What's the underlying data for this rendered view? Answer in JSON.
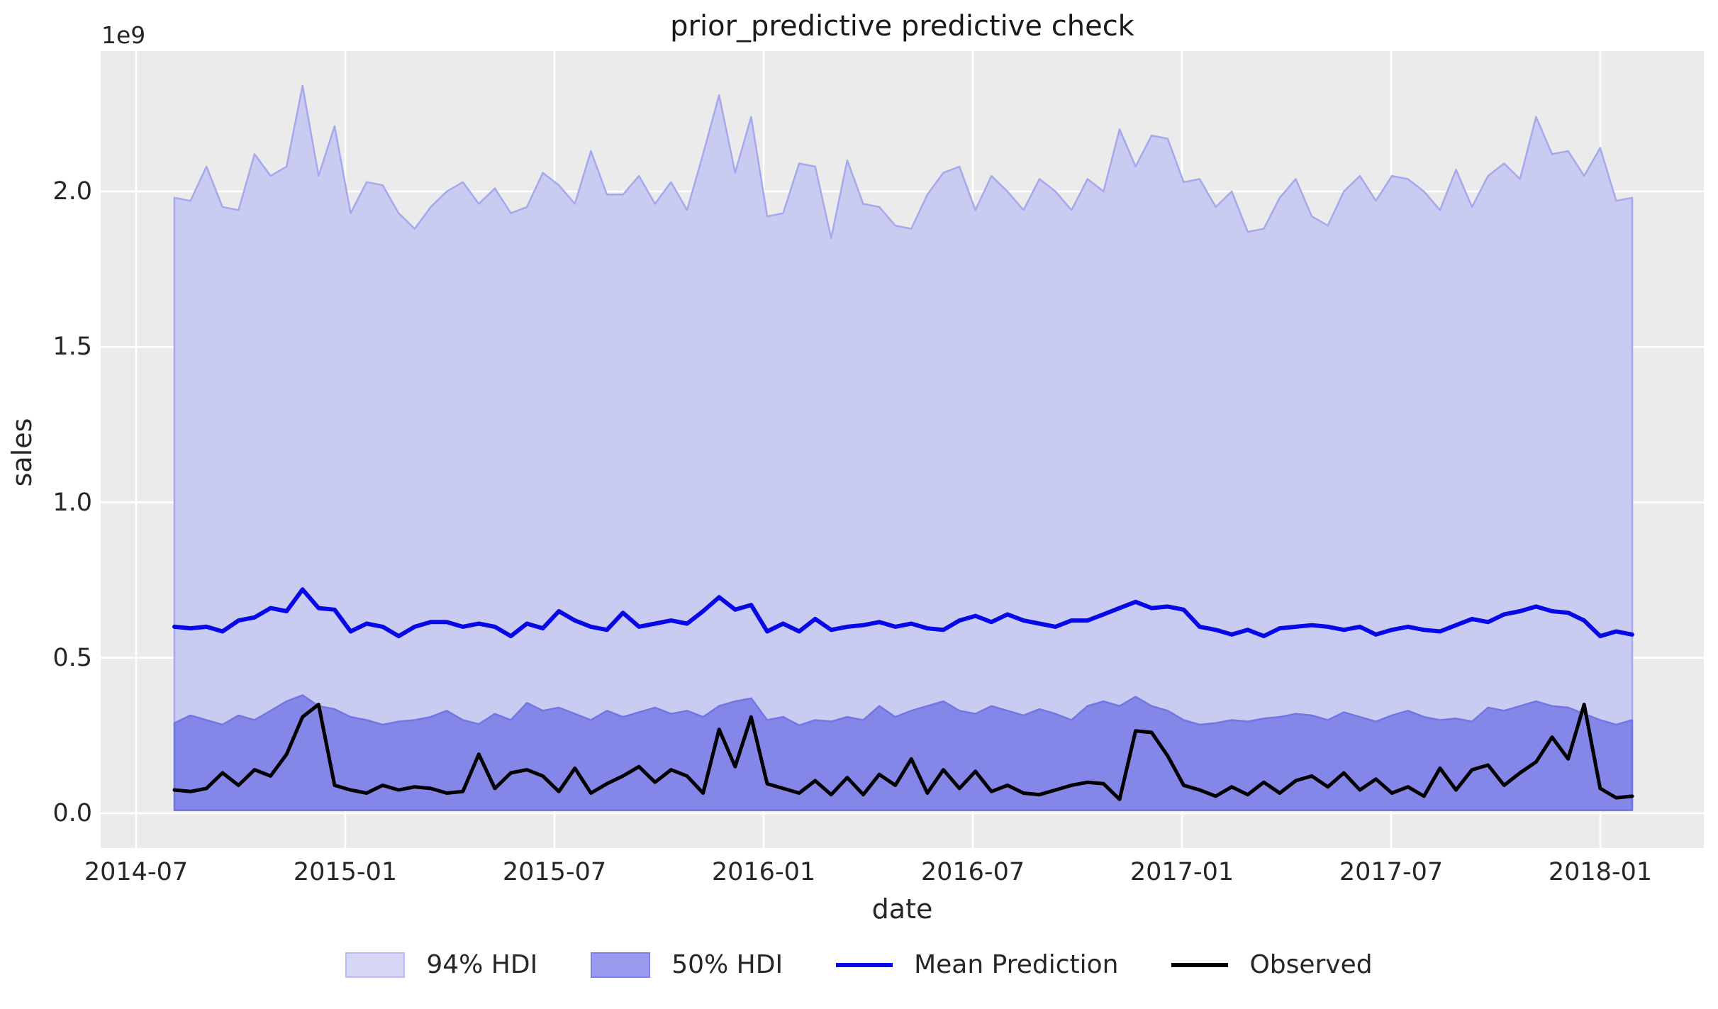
{
  "figure": {
    "title": "prior_predictive predictive check",
    "offset_label": "1e9",
    "x_axis": {
      "label": "date",
      "ticks": [
        "2014-07",
        "2015-01",
        "2015-07",
        "2016-01",
        "2016-07",
        "2017-01",
        "2017-07",
        "2018-01"
      ]
    },
    "y_axis": {
      "label": "sales",
      "ticks": [
        "0.0",
        "0.5",
        "1.0",
        "1.5",
        "2.0"
      ]
    },
    "legend": [
      {
        "label": "94% HDI",
        "kind": "patch",
        "color": "#d6d7f7",
        "border": "#b9bbf2"
      },
      {
        "label": "50% HDI",
        "kind": "patch",
        "color": "#999cee",
        "border": "#7c80e8"
      },
      {
        "label": "Mean Prediction",
        "kind": "line",
        "color": "#0707e8"
      },
      {
        "label": "Observed",
        "kind": "line",
        "color": "#000000"
      }
    ],
    "colors": {
      "plot_background": "#ebebeb",
      "grid": "#ffffff",
      "hdi94_fill": "#c9cbf0",
      "hdi94_edge": "#a6a8ee",
      "hdi50_fill": "#8487e7",
      "hdi50_edge": "#7276e3",
      "mean_line": "#0707e8",
      "observed_line": "#000000",
      "text": "#262626"
    }
  },
  "chart_data": {
    "type": "area",
    "title": "prior_predictive predictive check",
    "xlabel": "date",
    "ylabel": "sales",
    "y_unit_multiplier": "1e9",
    "x_start": "2014-08",
    "x_end": "2018-02",
    "x_tick_labels": [
      "2014-07",
      "2015-01",
      "2015-07",
      "2016-01",
      "2016-07",
      "2017-01",
      "2017-07",
      "2018-01"
    ],
    "y_ticks": [
      0.0,
      0.5,
      1.0,
      1.5,
      2.0
    ],
    "ylim": [
      -0.11,
      2.45
    ],
    "grid": true,
    "legend_position": "bottom",
    "n_points": 92,
    "band_lower_value": 0.01,
    "series": [
      {
        "name": "94% HDI",
        "kind": "band",
        "lower_value": 0.01,
        "upper": [
          1.98,
          1.97,
          2.08,
          1.95,
          1.94,
          2.12,
          2.05,
          2.08,
          2.34,
          2.05,
          2.21,
          1.93,
          2.03,
          2.02,
          1.93,
          1.88,
          1.95,
          2.0,
          2.03,
          1.96,
          2.01,
          1.93,
          1.95,
          2.06,
          2.02,
          1.96,
          2.13,
          1.99,
          1.99,
          2.05,
          1.96,
          2.03,
          1.94,
          2.12,
          2.31,
          2.06,
          2.24,
          1.92,
          1.93,
          2.09,
          2.08,
          1.85,
          2.1,
          1.96,
          1.95,
          1.89,
          1.88,
          1.99,
          2.06,
          2.08,
          1.94,
          2.05,
          2.0,
          1.94,
          2.04,
          2.0,
          1.94,
          2.04,
          2.0,
          2.2,
          2.08,
          2.18,
          2.17,
          2.03,
          2.04,
          1.95,
          2.0,
          1.87,
          1.88,
          1.98,
          2.04,
          1.92,
          1.89,
          2.0,
          2.05,
          1.97,
          2.05,
          2.04,
          2.0,
          1.94,
          2.07,
          1.95,
          2.05,
          2.09,
          2.04,
          2.24,
          2.12,
          2.13,
          2.05,
          2.14,
          1.97,
          1.98
        ]
      },
      {
        "name": "50% HDI",
        "kind": "band",
        "lower_value": 0.01,
        "upper": [
          0.29,
          0.315,
          0.3,
          0.285,
          0.315,
          0.3,
          0.33,
          0.36,
          0.38,
          0.345,
          0.335,
          0.31,
          0.3,
          0.285,
          0.295,
          0.3,
          0.31,
          0.33,
          0.3,
          0.287,
          0.32,
          0.3,
          0.355,
          0.33,
          0.34,
          0.32,
          0.3,
          0.33,
          0.31,
          0.325,
          0.34,
          0.32,
          0.33,
          0.31,
          0.345,
          0.36,
          0.37,
          0.3,
          0.31,
          0.283,
          0.3,
          0.295,
          0.31,
          0.3,
          0.345,
          0.31,
          0.33,
          0.345,
          0.36,
          0.33,
          0.32,
          0.345,
          0.33,
          0.315,
          0.335,
          0.32,
          0.3,
          0.345,
          0.36,
          0.345,
          0.375,
          0.345,
          0.33,
          0.3,
          0.285,
          0.29,
          0.3,
          0.295,
          0.305,
          0.31,
          0.32,
          0.315,
          0.3,
          0.325,
          0.31,
          0.295,
          0.315,
          0.33,
          0.31,
          0.3,
          0.305,
          0.295,
          0.34,
          0.33,
          0.345,
          0.36,
          0.345,
          0.34,
          0.32,
          0.3,
          0.285,
          0.3
        ]
      },
      {
        "name": "Mean Prediction",
        "kind": "line",
        "values": [
          0.6,
          0.595,
          0.6,
          0.585,
          0.62,
          0.63,
          0.66,
          0.65,
          0.72,
          0.66,
          0.655,
          0.585,
          0.61,
          0.6,
          0.57,
          0.6,
          0.615,
          0.615,
          0.6,
          0.61,
          0.6,
          0.57,
          0.61,
          0.595,
          0.65,
          0.62,
          0.6,
          0.59,
          0.645,
          0.6,
          0.61,
          0.62,
          0.61,
          0.65,
          0.695,
          0.655,
          0.67,
          0.585,
          0.61,
          0.585,
          0.625,
          0.59,
          0.6,
          0.605,
          0.615,
          0.6,
          0.61,
          0.595,
          0.59,
          0.62,
          0.635,
          0.615,
          0.64,
          0.62,
          0.61,
          0.6,
          0.62,
          0.62,
          0.64,
          0.66,
          0.68,
          0.66,
          0.665,
          0.655,
          0.6,
          0.59,
          0.575,
          0.59,
          0.57,
          0.595,
          0.6,
          0.605,
          0.6,
          0.59,
          0.6,
          0.575,
          0.59,
          0.6,
          0.59,
          0.585,
          0.605,
          0.625,
          0.615,
          0.64,
          0.65,
          0.665,
          0.65,
          0.645,
          0.62,
          0.57,
          0.585,
          0.575
        ]
      },
      {
        "name": "Observed",
        "kind": "line",
        "values": [
          0.075,
          0.07,
          0.08,
          0.13,
          0.09,
          0.14,
          0.12,
          0.19,
          0.31,
          0.35,
          0.09,
          0.075,
          0.065,
          0.09,
          0.075,
          0.085,
          0.08,
          0.065,
          0.07,
          0.19,
          0.08,
          0.13,
          0.14,
          0.12,
          0.07,
          0.145,
          0.065,
          0.095,
          0.12,
          0.15,
          0.1,
          0.14,
          0.12,
          0.065,
          0.27,
          0.15,
          0.31,
          0.095,
          0.08,
          0.065,
          0.105,
          0.06,
          0.115,
          0.06,
          0.125,
          0.09,
          0.175,
          0.065,
          0.14,
          0.08,
          0.135,
          0.07,
          0.09,
          0.065,
          0.06,
          0.075,
          0.09,
          0.1,
          0.095,
          0.045,
          0.265,
          0.26,
          0.185,
          0.09,
          0.075,
          0.055,
          0.085,
          0.06,
          0.1,
          0.065,
          0.105,
          0.12,
          0.085,
          0.13,
          0.075,
          0.11,
          0.065,
          0.085,
          0.055,
          0.145,
          0.075,
          0.14,
          0.155,
          0.09,
          0.13,
          0.165,
          0.245,
          0.175,
          0.35,
          0.08,
          0.05,
          0.055
        ]
      }
    ]
  }
}
